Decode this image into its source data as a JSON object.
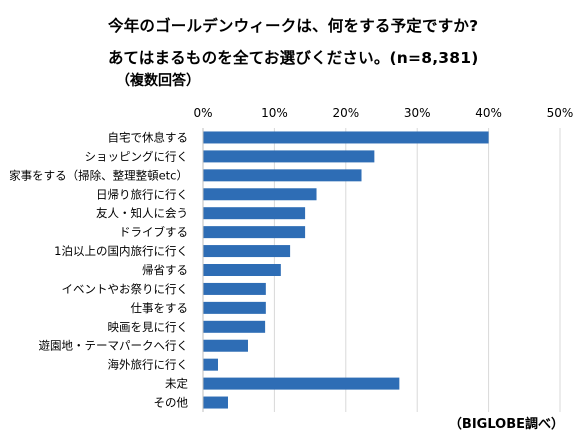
{
  "title": {
    "line1": "今年のゴールデンウィークは、何をする予定ですか?",
    "line2": "あてはまるものを全てお選びください。(n=8,381)"
  },
  "note": "（複数回答）",
  "source": "（BIGLOBE調べ）",
  "chart_data": {
    "type": "bar",
    "orientation": "horizontal",
    "categories": [
      "自宅で休息する",
      "ショッピングに行く",
      "家事をする（掃除、整理整頓etc）",
      "日帰り旅行に行く",
      "友人・知人に会う",
      "ドライブする",
      "1泊以上の国内旅行に行く",
      "帰省する",
      "イベントやお祭りに行く",
      "仕事をする",
      "映画を見に行く",
      "遊園地・テーマパークへ行く",
      "海外旅行に行く",
      "未定",
      "その他"
    ],
    "values": [
      40.0,
      24.0,
      22.2,
      15.9,
      14.3,
      14.3,
      12.2,
      10.9,
      8.8,
      8.8,
      8.7,
      6.3,
      2.1,
      27.5,
      3.5
    ],
    "xlim": [
      0,
      50
    ],
    "xticks": [
      "0%",
      "10%",
      "20%",
      "30%",
      "40%",
      "50%"
    ],
    "xtick_values": [
      0,
      10,
      20,
      30,
      40,
      50
    ],
    "grid": true,
    "bar_color": "#2e6db5",
    "grid_color": "#d9d9d9"
  }
}
